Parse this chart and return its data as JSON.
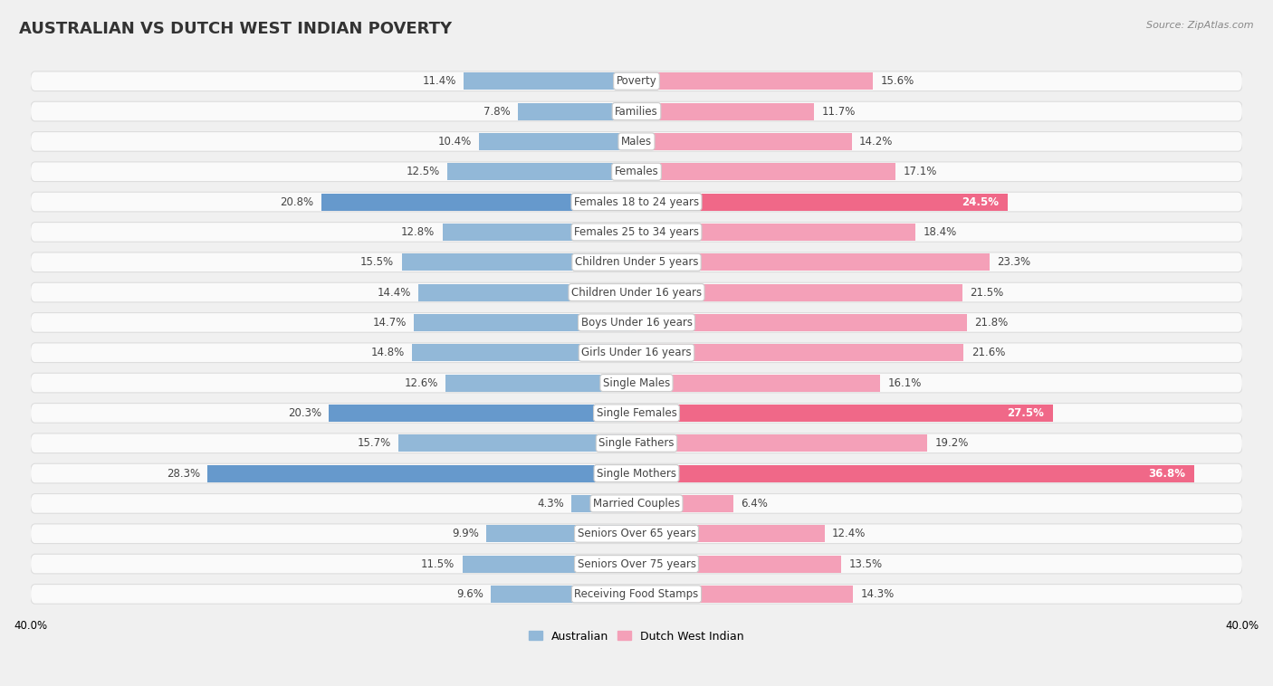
{
  "title": "AUSTRALIAN VS DUTCH WEST INDIAN POVERTY",
  "source": "Source: ZipAtlas.com",
  "categories": [
    "Poverty",
    "Families",
    "Males",
    "Females",
    "Females 18 to 24 years",
    "Females 25 to 34 years",
    "Children Under 5 years",
    "Children Under 16 years",
    "Boys Under 16 years",
    "Girls Under 16 years",
    "Single Males",
    "Single Females",
    "Single Fathers",
    "Single Mothers",
    "Married Couples",
    "Seniors Over 65 years",
    "Seniors Over 75 years",
    "Receiving Food Stamps"
  ],
  "australian": [
    11.4,
    7.8,
    10.4,
    12.5,
    20.8,
    12.8,
    15.5,
    14.4,
    14.7,
    14.8,
    12.6,
    20.3,
    15.7,
    28.3,
    4.3,
    9.9,
    11.5,
    9.6
  ],
  "dutch_west_indian": [
    15.6,
    11.7,
    14.2,
    17.1,
    24.5,
    18.4,
    23.3,
    21.5,
    21.8,
    21.6,
    16.1,
    27.5,
    19.2,
    36.8,
    6.4,
    12.4,
    13.5,
    14.3
  ],
  "australian_color": "#92b8d8",
  "dutch_west_indian_color": "#f4a0b8",
  "highlight_australian_color": "#6699cc",
  "highlight_dutch_color": "#f06888",
  "axis_limit": 40.0,
  "background_color": "#f0f0f0",
  "row_bg_color": "#fafafa",
  "row_border_color": "#dddddd",
  "title_fontsize": 13,
  "label_fontsize": 8.5,
  "value_fontsize": 8.5,
  "legend_fontsize": 9,
  "highlight_rows": [
    4,
    11,
    13
  ]
}
